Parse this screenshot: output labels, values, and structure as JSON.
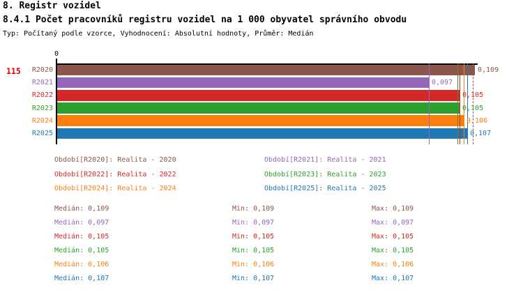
{
  "header": {
    "line1": "8. Registr vozidel",
    "line2": "8.4.1 Počet pracovníků registru vozidel na 1 000 obyvatel správního obvodu",
    "line3": "Typ: Počítaný podle vzorce, Vyhodnocení: Absolutní hodnoty, Průměr: Medián"
  },
  "chart": {
    "row_id": "115",
    "axis_zero_label": "0"
  },
  "chart_data": {
    "type": "bar",
    "orientation": "horizontal",
    "title": "8.4.1 Počet pracovníků registru vozidel na 1 000 obyvatel správního obvodu",
    "xlabel": "",
    "ylabel": "",
    "categories": [
      "R2020",
      "R2021",
      "R2022",
      "R2023",
      "R2024",
      "R2025"
    ],
    "values": [
      0.109,
      0.097,
      0.105,
      0.105,
      0.106,
      0.107
    ],
    "value_labels": [
      "0,109",
      "0,097",
      "0,105",
      "0,105",
      "0,106",
      "0,107"
    ],
    "colors": [
      "#8C564B",
      "#9467BD",
      "#D62728",
      "#2CA02C",
      "#FF7F0E",
      "#1F77B4"
    ],
    "xlim": [
      0,
      0.1095
    ],
    "x_axis_ticks": [
      "0"
    ],
    "grid": false,
    "legend_position": "below",
    "median_markers": {
      "values": [
        0.109,
        0.097,
        0.105,
        0.105,
        0.106,
        0.107
      ],
      "dashed_index": 0
    }
  },
  "legend": {
    "items": [
      {
        "text": "Období[R2020]: Realita - 2020",
        "color": "#8C564B",
        "col": 0,
        "row": 0
      },
      {
        "text": "Období[R2021]: Realita - 2021",
        "color": "#9467BD",
        "col": 1,
        "row": 0
      },
      {
        "text": "Období[R2022]: Realita - 2022",
        "color": "#D62728",
        "col": 0,
        "row": 1
      },
      {
        "text": "Období[R2023]: Realita - 2023",
        "color": "#2CA02C",
        "col": 1,
        "row": 1
      },
      {
        "text": "Období[R2024]: Realita - 2024",
        "color": "#FF7F0E",
        "col": 0,
        "row": 2
      },
      {
        "text": "Období[R2025]: Realita - 2025",
        "color": "#1F77B4",
        "col": 1,
        "row": 2
      }
    ]
  },
  "stats": {
    "rows": [
      {
        "median": "Medián: 0,109",
        "min": "Min: 0,109",
        "max": "Max: 0,109",
        "color": "#8C564B"
      },
      {
        "median": "Medián: 0,097",
        "min": "Min: 0,097",
        "max": "Max: 0,097",
        "color": "#9467BD"
      },
      {
        "median": "Medián: 0,105",
        "min": "Min: 0,105",
        "max": "Max: 0,105",
        "color": "#D62728"
      },
      {
        "median": "Medián: 0,105",
        "min": "Min: 0,105",
        "max": "Max: 0,105",
        "color": "#2CA02C"
      },
      {
        "median": "Medián: 0,106",
        "min": "Min: 0,106",
        "max": "Max: 0,106",
        "color": "#FF7F0E"
      },
      {
        "median": "Medián: 0,107",
        "min": "Min: 0,107",
        "max": "Max: 0,107",
        "color": "#1F77B4"
      }
    ]
  }
}
